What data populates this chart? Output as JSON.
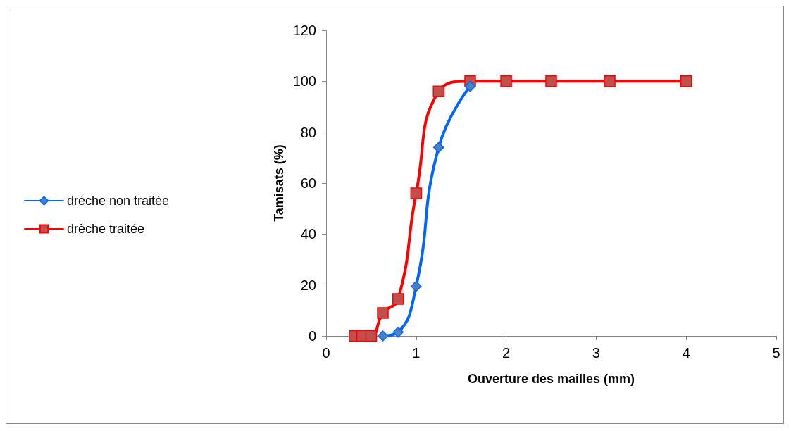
{
  "chart_data": {
    "type": "line",
    "xlabel": "Ouverture des mailles (mm)",
    "ylabel": "Tamisats (%)",
    "series": [
      {
        "name": "drèche non traitée",
        "color": "#0066ff",
        "marker": "diamond",
        "x": [
          0.63,
          0.8,
          1,
          1.25,
          1.6
        ],
        "values": [
          0,
          1.5,
          19.5,
          74,
          98
        ]
      },
      {
        "name": "drèche traitée",
        "color": "#ff0000",
        "marker": "square",
        "x": [
          0.315,
          0.4,
          0.5,
          0.63,
          0.8,
          1,
          1.25,
          1.6,
          2,
          2.5,
          3.15,
          4
        ],
        "values": [
          0,
          0,
          0,
          9,
          14.5,
          56,
          96,
          100,
          100,
          100,
          100,
          100
        ]
      }
    ],
    "xlim": [
      0,
      5
    ],
    "xticks": [
      0,
      1,
      2,
      3,
      4,
      5
    ],
    "ylim": [
      0,
      120
    ],
    "yticks": [
      0,
      20,
      40,
      60,
      80,
      100,
      120
    ],
    "grid": false,
    "legend": "left",
    "line_style": "solid"
  }
}
